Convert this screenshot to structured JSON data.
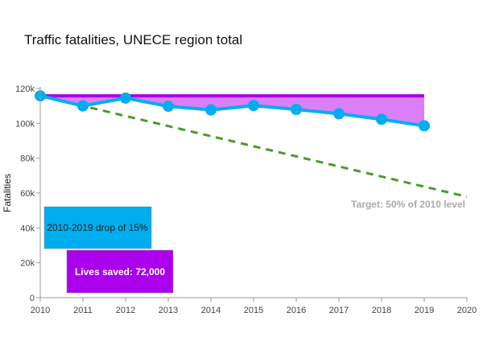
{
  "chart_data": {
    "type": "line",
    "title": "Traffic fatalities, UNECE region total",
    "xlabel": "",
    "ylabel": "Fatalities",
    "xlim": [
      2010,
      2020
    ],
    "ylim": [
      0,
      120000
    ],
    "x_ticks": [
      "2010",
      "2011",
      "2012",
      "2013",
      "2014",
      "2015",
      "2016",
      "2017",
      "2018",
      "2019",
      "2020"
    ],
    "y_ticks": [
      "0",
      "20k",
      "40k",
      "60k",
      "80k",
      "100k",
      "120k"
    ],
    "series": [
      {
        "name": "",
        "color": "#00aeef",
        "x": [
          2010,
          2011,
          2012,
          2013,
          2014,
          2015,
          2016,
          2017,
          2018,
          2019
        ],
        "values": [
          115800,
          110000,
          114500,
          109800,
          107700,
          110200,
          108000,
          105500,
          102300,
          98600
        ]
      }
    ],
    "baseline": {
      "value": 115800,
      "x_end": 2019,
      "color": "#aa00ee",
      "fill_color": "#d97ff7"
    },
    "target": {
      "x": [
        2010,
        2020
      ],
      "values": [
        115800,
        57900
      ],
      "color": "#4c9a2a",
      "label": "Target: 50% of 2010 level"
    },
    "annotations": [
      {
        "text": "2010-2019 drop of 15%",
        "bg_color": "#00aeef",
        "text_color": "#222222"
      },
      {
        "text": "Lives saved: 72,000",
        "bg_color": "#aa00ee",
        "text_color": "#ffffff"
      }
    ]
  }
}
